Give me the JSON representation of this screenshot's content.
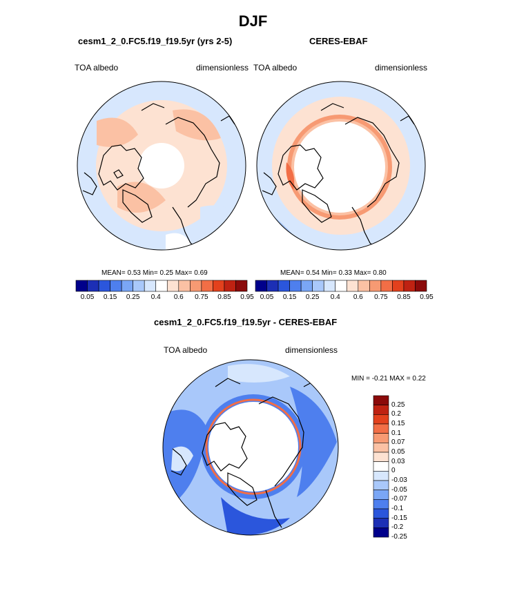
{
  "title": "DJF",
  "panels": [
    {
      "subtitle": "cesm1_2_0.FC5.f19_f19.5yr (yrs 2-5)",
      "left_label": "TOA albedo",
      "right_label": "dimensionless",
      "stats": "MEAN=   0.53  Min=   0.25  Max=   0.69"
    },
    {
      "subtitle": "CERES-EBAF",
      "left_label": "TOA albedo",
      "right_label": "dimensionless",
      "stats": "MEAN=   0.54  Min=   0.33  Max=   0.80"
    },
    {
      "subtitle": "cesm1_2_0.FC5.f19_f19.5yr - CERES-EBAF",
      "left_label": "TOA albedo",
      "right_label": "dimensionless",
      "stats": "MIN =  -0.21 MAX =   0.22"
    }
  ],
  "colors": {
    "blues": [
      "#00008b",
      "#1c2fb5",
      "#2b56dc",
      "#4e7fee",
      "#7aa6f5",
      "#a9c8fa",
      "#d7e7fd"
    ],
    "reds": [
      "#fde2d2",
      "#fbc1a4",
      "#f79a73",
      "#f26e46",
      "#e3411d",
      "#bf2212",
      "#8b0a0a"
    ],
    "neutral": "#ffffff",
    "polar_fill": "#ffffff",
    "land_line": "#000000"
  },
  "chart_data": [
    {
      "type": "heatmap",
      "projection": "north polar stereographic",
      "title": "cesm1_2_0.FC5.f19_f19.5yr (yrs 2-5)",
      "variable": "TOA albedo",
      "units": "dimensionless",
      "mean": 0.53,
      "min": 0.25,
      "max": 0.69,
      "levels": [
        0.05,
        0.1,
        0.15,
        0.2,
        0.25,
        0.3,
        0.35,
        0.4,
        0.5,
        0.6,
        0.7,
        0.75,
        0.8,
        0.85,
        0.9,
        0.95
      ],
      "colorbar_ticks": [
        "0.05",
        "0.15",
        "0.25",
        "0.4",
        "0.6",
        "0.75",
        "0.85",
        "0.95"
      ]
    },
    {
      "type": "heatmap",
      "projection": "north polar stereographic",
      "title": "CERES-EBAF",
      "variable": "TOA albedo",
      "units": "dimensionless",
      "mean": 0.54,
      "min": 0.33,
      "max": 0.8,
      "levels": [
        0.05,
        0.1,
        0.15,
        0.2,
        0.25,
        0.3,
        0.35,
        0.4,
        0.5,
        0.6,
        0.7,
        0.75,
        0.8,
        0.85,
        0.9,
        0.95
      ],
      "colorbar_ticks": [
        "0.05",
        "0.15",
        "0.25",
        "0.4",
        "0.6",
        "0.75",
        "0.85",
        "0.95"
      ]
    },
    {
      "type": "heatmap",
      "projection": "north polar stereographic",
      "title": "cesm1_2_0.FC5.f19_f19.5yr - CERES-EBAF",
      "variable": "TOA albedo",
      "units": "dimensionless",
      "min": -0.21,
      "max": 0.22,
      "levels": [
        -0.25,
        -0.2,
        -0.15,
        -0.1,
        -0.07,
        -0.05,
        -0.03,
        0,
        0.03,
        0.05,
        0.07,
        0.1,
        0.15,
        0.2,
        0.25
      ],
      "colorbar_ticks": [
        "0.25",
        "0.2",
        "0.15",
        "0.1",
        "0.07",
        "0.05",
        "0.03",
        "0",
        "-0.03",
        "-0.05",
        "-0.07",
        "-0.1",
        "-0.15",
        "-0.2",
        "-0.25"
      ]
    }
  ]
}
